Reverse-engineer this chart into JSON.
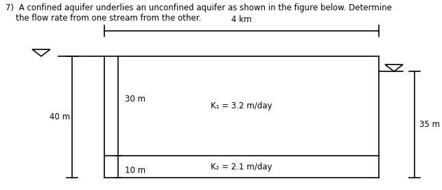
{
  "title_line1": "7)  A confined aquifer underlies an unconfined aquifer as shown in the figure below. Determine",
  "title_line2": "    the flow rate from one stream from the other.",
  "fig_width": 6.44,
  "fig_height": 2.77,
  "dpi": 100,
  "bg_color": "#ffffff",
  "text_color": "#000000",
  "line_color": "#000000",
  "label_4km": "4 km",
  "label_K1": "K₁ = 3.2 m/day",
  "label_K2": "K₂ = 2.1 m/day",
  "label_30m": "30 m",
  "label_10m": "10 m",
  "label_40m": "40 m",
  "label_35m": "35 m",
  "font_size_title": 8.5,
  "font_size_labels": 8.5,
  "lw": 1.2
}
